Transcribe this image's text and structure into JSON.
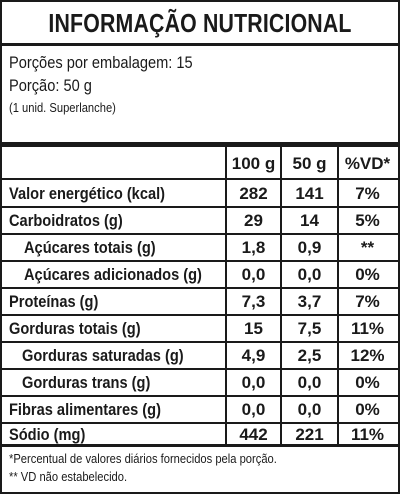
{
  "title": "INFORMAÇÃO NUTRICIONAL",
  "portions_per_package": "Porções por embalagem: 15",
  "portion": "Porção: 50 g",
  "portion_note": "(1 unid. Superlanche)",
  "columns": [
    "100 g",
    "50 g",
    "%VD*"
  ],
  "rows": [
    {
      "label": "Valor energético (kcal)",
      "v100": "282",
      "v50": "141",
      "vd": "7%"
    },
    {
      "label": "Carboidratos (g)",
      "v100": "29",
      "v50": "14",
      "vd": "5%"
    },
    {
      "label": "Açúcares totais (g)",
      "v100": "1,8",
      "v50": "0,9",
      "vd": "**"
    },
    {
      "label": "Açúcares adicionados (g)",
      "v100": "0,0",
      "v50": "0,0",
      "vd": "0%"
    },
    {
      "label": "Proteínas (g)",
      "v100": "7,3",
      "v50": "3,7",
      "vd": "7%"
    },
    {
      "label": "Gorduras totais (g)",
      "v100": "15",
      "v50": "7,5",
      "vd": "11%"
    },
    {
      "label": "Gorduras saturadas (g)",
      "v100": "4,9",
      "v50": "2,5",
      "vd": "12%"
    },
    {
      "label": "Gorduras trans (g)",
      "v100": "0,0",
      "v50": "0,0",
      "vd": "0%"
    },
    {
      "label": "Fibras alimentares (g)",
      "v100": "0,0",
      "v50": "0,0",
      "vd": "0%"
    },
    {
      "label": "Sódio (mg)",
      "v100": "442",
      "v50": "221",
      "vd": "11%"
    }
  ],
  "footnotes": [
    "*Percentual de valores diários fornecidos pela porção.",
    "** VD não estabelecido."
  ]
}
